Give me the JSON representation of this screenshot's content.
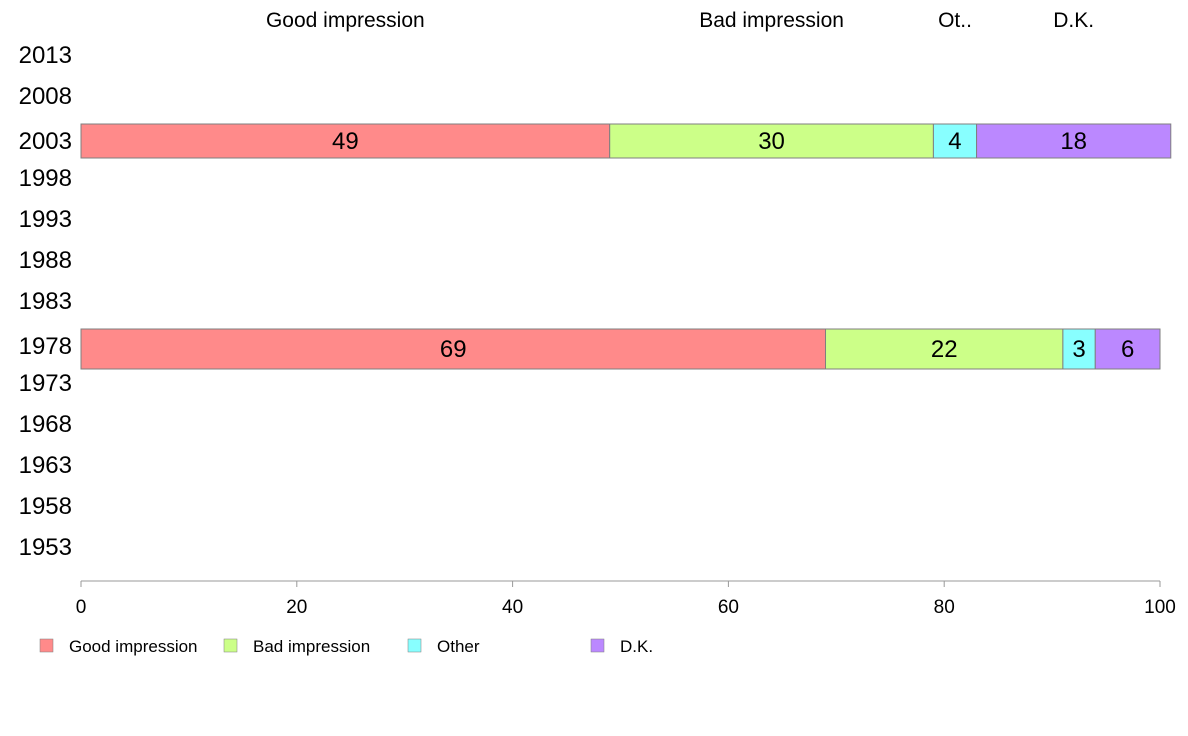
{
  "chart_data": {
    "type": "bar",
    "orientation": "horizontal",
    "stacked": true,
    "categories": [
      "2013",
      "2008",
      "2003",
      "1998",
      "1993",
      "1988",
      "1983",
      "1978",
      "1973",
      "1968",
      "1963",
      "1958",
      "1953"
    ],
    "series": [
      {
        "name": "Good impression",
        "header": "Good impression",
        "color": "#ff8a8a",
        "values": [
          null,
          null,
          49,
          null,
          null,
          null,
          null,
          69,
          null,
          null,
          null,
          null,
          null
        ]
      },
      {
        "name": "Bad impression",
        "header": "Bad impression",
        "color": "#ccff88",
        "values": [
          null,
          null,
          30,
          null,
          null,
          null,
          null,
          22,
          null,
          null,
          null,
          null,
          null
        ]
      },
      {
        "name": "Other",
        "header": "Ot..",
        "color": "#88ffff",
        "values": [
          null,
          null,
          4,
          null,
          null,
          null,
          null,
          3,
          null,
          null,
          null,
          null,
          null
        ]
      },
      {
        "name": "D.K.",
        "header": "D.K.",
        "color": "#bb88ff",
        "values": [
          null,
          null,
          18,
          null,
          null,
          null,
          null,
          6,
          null,
          null,
          null,
          null,
          null
        ]
      }
    ],
    "xlim": [
      0,
      100
    ],
    "xticks": [
      "0",
      "20",
      "40",
      "60",
      "80",
      "100"
    ],
    "grid": false,
    "legend_position": "bottom-left"
  }
}
